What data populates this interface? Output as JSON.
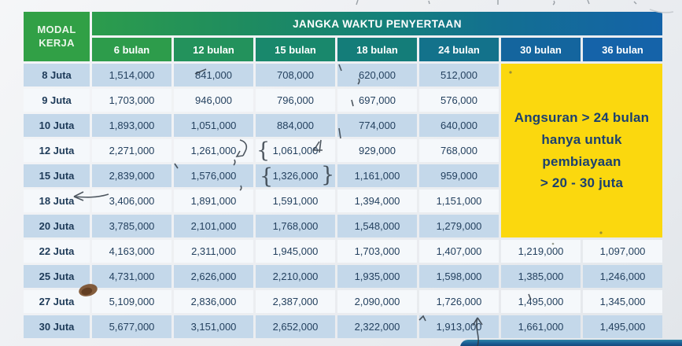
{
  "table": {
    "corner_header": "MODAL KERJA",
    "span_header": "JANGKA WAKTU PENYERTAAN",
    "column_headers": [
      "6 bulan",
      "12 bulan",
      "15 bulan",
      "18 bulan",
      "24 bulan",
      "30 bulan",
      "36 bulan"
    ],
    "rows": [
      {
        "label": "8 Juta",
        "values": [
          "1,514,000",
          "841,000",
          "708,000",
          "620,000",
          "512,000"
        ]
      },
      {
        "label": "9 Juta",
        "values": [
          "1,703,000",
          "946,000",
          "796,000",
          "697,000",
          "576,000"
        ]
      },
      {
        "label": "10 Juta",
        "values": [
          "1,893,000",
          "1,051,000",
          "884,000",
          "774,000",
          "640,000"
        ]
      },
      {
        "label": "12 Juta",
        "values": [
          "2,271,000",
          "1,261,000",
          "1,061,000",
          "929,000",
          "768,000"
        ]
      },
      {
        "label": "15 Juta",
        "values": [
          "2,839,000",
          "1,576,000",
          "1,326,000",
          "1,161,000",
          "959,000"
        ]
      },
      {
        "label": "18 Juta",
        "values": [
          "3,406,000",
          "1,891,000",
          "1,591,000",
          "1,394,000",
          "1,151,000"
        ]
      },
      {
        "label": "20 Juta",
        "values": [
          "3,785,000",
          "2,101,000",
          "1,768,000",
          "1,548,000",
          "1,279,000"
        ]
      },
      {
        "label": "22 Juta",
        "values": [
          "4,163,000",
          "2,311,000",
          "1,945,000",
          "1,703,000",
          "1,407,000",
          "1,219,000",
          "1,097,000"
        ]
      },
      {
        "label": "25 Juta",
        "values": [
          "4,731,000",
          "2,626,000",
          "2,210,000",
          "1,935,000",
          "1,598,000",
          "1,385,000",
          "1,246,000"
        ]
      },
      {
        "label": "27 Juta",
        "values": [
          "5,109,000",
          "2,836,000",
          "2,387,000",
          "2,090,000",
          "1,726,000",
          "1,495,000",
          "1,345,000"
        ]
      },
      {
        "label": "30 Juta",
        "values": [
          "5,677,000",
          "3,151,000",
          "2,652,000",
          "2,322,000",
          "1,913,000",
          "1,661,000",
          "1,495,000"
        ]
      }
    ],
    "notice": {
      "lines": [
        "Angsuran > 24 bulan",
        "hanya untuk",
        "pembiayaan",
        "> 20 - 30 juta"
      ],
      "rows_spanned": 7,
      "cols_spanned": 2
    },
    "colors": {
      "header_green": "#2f9f48",
      "header_blue": "#1563a8",
      "header_teal_mid": "#14807b",
      "row_blue": "#c4d8ea",
      "row_white": "#f5f8fb",
      "notice_yellow": "#fbd80e",
      "notice_text": "#1b4070",
      "cell_text": "#24415f",
      "bottom_bar_blue": "#123f6d"
    }
  }
}
